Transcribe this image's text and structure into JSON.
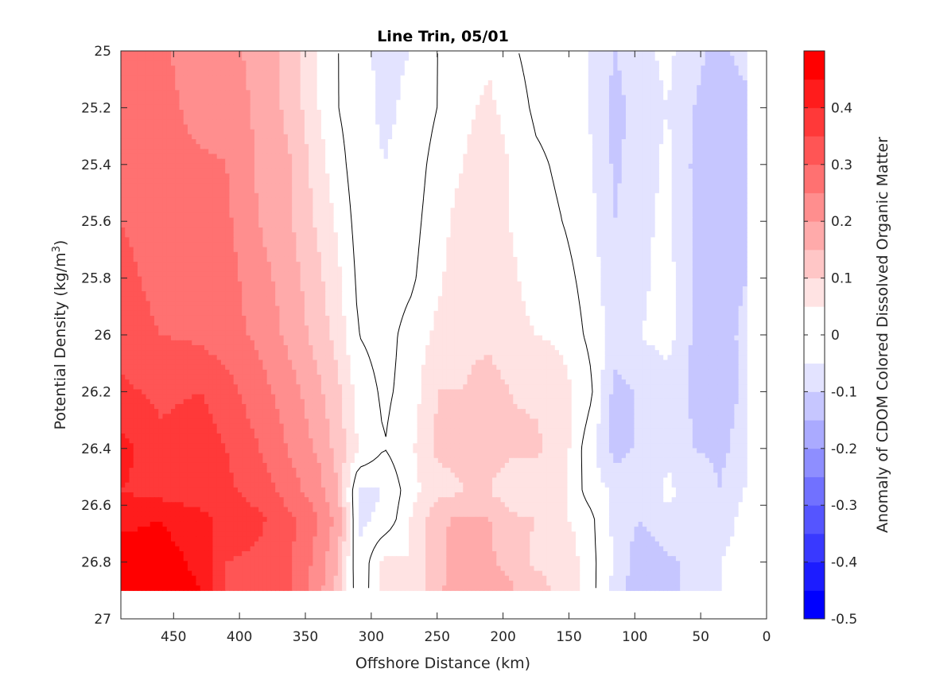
{
  "chart_data": {
    "type": "heatmap",
    "subtype": "filled-contour",
    "title": "Line Trin, 05/01",
    "xlabel": "Offshore Distance (km)",
    "ylabel_main": "Potential Density (kg/m",
    "ylabel_sup": "3",
    "ylabel_end": ")",
    "colorbar_label": "Anomaly of CDOM Colored Dissolved Organic Matter",
    "xlim": [
      0,
      490
    ],
    "x_reversed": true,
    "ylim": [
      25,
      27
    ],
    "y_reversed": true,
    "x_ticks": [
      "450",
      "400",
      "350",
      "300",
      "250",
      "200",
      "150",
      "100",
      "50",
      "0"
    ],
    "y_ticks": [
      "25",
      "25.2",
      "25.4",
      "25.6",
      "25.8",
      "26",
      "26.2",
      "26.4",
      "26.6",
      "26.8",
      "27"
    ],
    "colorbar_ticks": [
      "0.4",
      "0.3",
      "0.2",
      "0.1",
      "0",
      "-0.1",
      "-0.2",
      "-0.3",
      "-0.4",
      "-0.5"
    ],
    "clim": [
      -0.5,
      0.5
    ],
    "contour_levels_step": 0.05,
    "zero_contour": true,
    "data_ymax": 26.9,
    "grid": false,
    "colormap": {
      "low": "#0000ff",
      "mid": "#ffffff",
      "high": "#ff0000"
    },
    "profiles": [
      {
        "x": 490,
        "anomaly": [
          0.3,
          0.3,
          0.3,
          0.3,
          0.32,
          0.33,
          0.36,
          0.42,
          0.4,
          0.44,
          0.47,
          0.48
        ]
      },
      {
        "x": 460,
        "anomaly": [
          0.26,
          0.27,
          0.27,
          0.27,
          0.28,
          0.3,
          0.34,
          0.36,
          0.38,
          0.45,
          0.47,
          0.48
        ]
      },
      {
        "x": 430,
        "anomaly": [
          0.22,
          0.23,
          0.26,
          0.26,
          0.27,
          0.29,
          0.35,
          0.38,
          0.36,
          0.42,
          0.44,
          0.45
        ]
      },
      {
        "x": 410,
        "anomaly": [
          0.22,
          0.23,
          0.25,
          0.26,
          0.27,
          0.27,
          0.32,
          0.35,
          0.36,
          0.38,
          0.35,
          0.35
        ]
      },
      {
        "x": 385,
        "anomaly": [
          0.18,
          0.19,
          0.19,
          0.2,
          0.22,
          0.24,
          0.27,
          0.3,
          0.33,
          0.36,
          0.34,
          0.33
        ]
      },
      {
        "x": 360,
        "anomaly": [
          0.13,
          0.13,
          0.15,
          0.15,
          0.17,
          0.18,
          0.22,
          0.24,
          0.27,
          0.31,
          0.3,
          0.3
        ]
      },
      {
        "x": 340,
        "anomaly": [
          0.05,
          0.05,
          0.07,
          0.09,
          0.11,
          0.13,
          0.16,
          0.19,
          0.22,
          0.25,
          0.23,
          0.22
        ]
      },
      {
        "x": 325,
        "anomaly": [
          0.0,
          0.0,
          0.02,
          0.04,
          0.06,
          0.08,
          0.11,
          0.13,
          0.15,
          0.18,
          0.15,
          0.13
        ]
      },
      {
        "x": 310,
        "anomaly": [
          -0.04,
          -0.03,
          -0.03,
          -0.02,
          -0.01,
          0.0,
          0.03,
          0.05,
          -0.06,
          -0.06,
          -0.05,
          -0.04
        ]
      },
      {
        "x": 290,
        "anomaly": [
          -0.06,
          -0.06,
          -0.05,
          -0.04,
          -0.03,
          -0.02,
          -0.01,
          0.0,
          -0.05,
          -0.04,
          0.07,
          0.06
        ]
      },
      {
        "x": 270,
        "anomaly": [
          -0.05,
          -0.04,
          -0.03,
          -0.02,
          -0.01,
          0.02,
          0.02,
          0.04,
          0.03,
          0.05,
          0.05,
          0.05
        ]
      },
      {
        "x": 250,
        "anomaly": [
          0.0,
          0.0,
          0.02,
          0.03,
          0.04,
          0.06,
          0.1,
          0.11,
          0.08,
          0.14,
          0.13,
          0.14
        ]
      },
      {
        "x": 230,
        "anomaly": [
          0.03,
          0.04,
          0.05,
          0.07,
          0.08,
          0.09,
          0.1,
          0.11,
          0.1,
          0.16,
          0.19,
          0.18
        ]
      },
      {
        "x": 210,
        "anomaly": [
          0.04,
          0.06,
          0.08,
          0.09,
          0.09,
          0.09,
          0.12,
          0.12,
          0.1,
          0.15,
          0.16,
          0.2
        ]
      },
      {
        "x": 195,
        "anomaly": [
          0.01,
          0.03,
          0.05,
          0.05,
          0.06,
          0.07,
          0.1,
          0.11,
          0.07,
          0.11,
          0.13,
          0.16
        ]
      },
      {
        "x": 175,
        "anomaly": [
          -0.02,
          -0.01,
          0.01,
          0.02,
          0.03,
          0.05,
          0.09,
          0.11,
          0.06,
          0.1,
          0.09,
          0.12
        ]
      },
      {
        "x": 155,
        "anomaly": [
          -0.03,
          -0.02,
          -0.01,
          0.0,
          0.02,
          0.04,
          0.07,
          0.08,
          0.06,
          0.06,
          0.1,
          0.08
        ]
      },
      {
        "x": 135,
        "anomaly": [
          -0.05,
          -0.05,
          -0.04,
          -0.03,
          -0.02,
          -0.01,
          0.02,
          -0.03,
          -0.02,
          0.02,
          0.02,
          0.03
        ]
      },
      {
        "x": 115,
        "anomaly": [
          -0.1,
          -0.12,
          -0.11,
          -0.1,
          -0.09,
          -0.07,
          -0.12,
          -0.12,
          -0.06,
          -0.07,
          -0.05,
          -0.08
        ]
      },
      {
        "x": 95,
        "anomaly": [
          -0.06,
          -0.07,
          -0.07,
          -0.06,
          -0.06,
          -0.05,
          -0.09,
          -0.09,
          -0.08,
          -0.1,
          -0.14,
          -0.14
        ]
      },
      {
        "x": 75,
        "anomaly": [
          -0.04,
          -0.05,
          -0.04,
          -0.04,
          -0.03,
          -0.03,
          -0.07,
          -0.06,
          -0.04,
          -0.06,
          -0.11,
          -0.12
        ]
      },
      {
        "x": 55,
        "anomaly": [
          -0.08,
          -0.1,
          -0.11,
          -0.1,
          -0.11,
          -0.11,
          -0.11,
          -0.1,
          -0.07,
          -0.09,
          -0.09,
          -0.07
        ]
      },
      {
        "x": 35,
        "anomaly": [
          -0.12,
          -0.15,
          -0.14,
          -0.14,
          -0.13,
          -0.13,
          -0.12,
          -0.11,
          -0.1,
          -0.08,
          -0.05,
          -0.05
        ]
      },
      {
        "x": 15,
        "anomaly": [
          -0.07,
          -0.12,
          -0.13,
          -0.13,
          -0.1,
          -0.08,
          -0.09,
          -0.08,
          -0.04,
          -0.03,
          -0.02,
          -0.02
        ]
      }
    ],
    "profile_depths": [
      25.0,
      25.2,
      25.4,
      25.6,
      25.8,
      26.0,
      26.2,
      26.4,
      26.55,
      26.65,
      26.8,
      26.9
    ]
  }
}
